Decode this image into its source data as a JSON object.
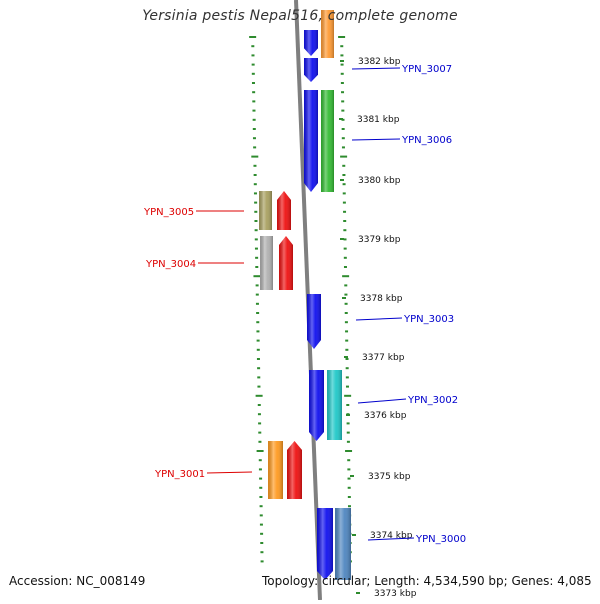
{
  "title": "Yersinia pestis Nepal516, complete genome",
  "footer": {
    "accession": "Accession: NC_008149",
    "summary": "Topology: circular; Length: 4,534,590 bp; Genes: 4,085"
  },
  "colors": {
    "backbone": "#7f7f7f",
    "tick": "#2e8b2e",
    "forward_label": "#0000cc",
    "reverse_label": "#dd0000",
    "ruler_text": "#111111"
  },
  "ruler": {
    "unit": "kbp",
    "labels": [
      "3382 kbp",
      "3381 kbp",
      "3380 kbp",
      "3379 kbp",
      "3378 kbp",
      "3377 kbp",
      "3376 kbp",
      "3375 kbp",
      "3374 kbp",
      "3373 kbp"
    ]
  },
  "features": [
    {
      "label": "",
      "strand": "forward",
      "track": "cds",
      "color": "#1010ee"
    },
    {
      "label": "",
      "strand": "forward",
      "track": "cog",
      "color": "#ff9a33"
    },
    {
      "label": "YPN_3007",
      "strand": "forward",
      "track": "cds",
      "color": "#1010ee"
    },
    {
      "label": "YPN_3006",
      "strand": "forward",
      "track": "cds",
      "color": "#1010ee"
    },
    {
      "label": "",
      "strand": "forward",
      "track": "cog",
      "color": "#33bb33"
    },
    {
      "label": "YPN_3005",
      "strand": "reverse",
      "track": "cog",
      "color": "#a8a060"
    },
    {
      "label": "",
      "strand": "reverse",
      "track": "cds",
      "color": "#ee1111"
    },
    {
      "label": "YPN_3004",
      "strand": "reverse",
      "track": "cog",
      "color": "#b0b0b0"
    },
    {
      "label": "",
      "strand": "reverse",
      "track": "cds",
      "color": "#ee1111"
    },
    {
      "label": "YPN_3003",
      "strand": "forward",
      "track": "cds",
      "color": "#1010ee"
    },
    {
      "label": "YPN_3002",
      "strand": "forward",
      "track": "cds",
      "color": "#1010ee"
    },
    {
      "label": "",
      "strand": "forward",
      "track": "cog",
      "color": "#20c8c8"
    },
    {
      "label": "YPN_3001",
      "strand": "reverse",
      "track": "cog",
      "color": "#ff9a20"
    },
    {
      "label": "",
      "strand": "reverse",
      "track": "cds",
      "color": "#ee1111"
    },
    {
      "label": "YPN_3000",
      "strand": "forward",
      "track": "cds",
      "color": "#1010ee"
    },
    {
      "label": "",
      "strand": "forward",
      "track": "cog",
      "color": "#4f86c0"
    }
  ]
}
